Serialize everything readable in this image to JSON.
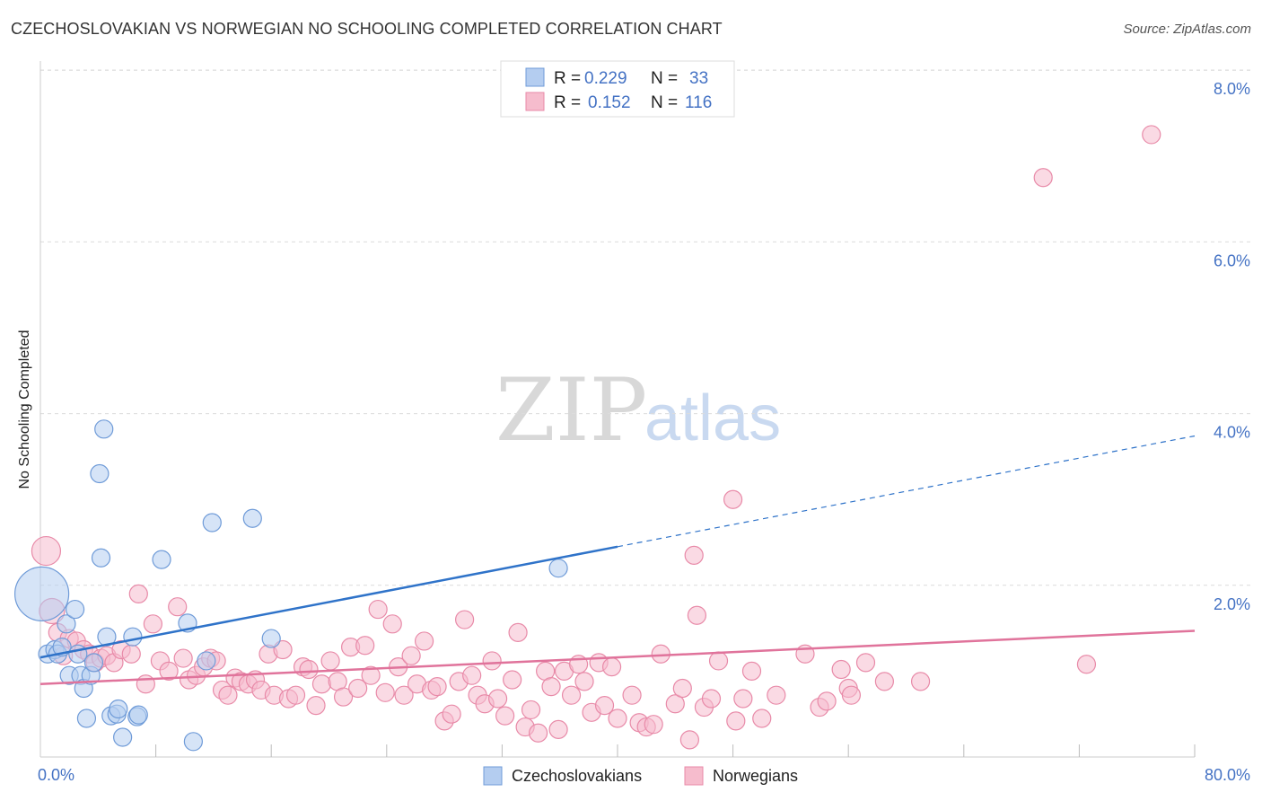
{
  "header": {
    "title": "CZECHOSLOVAKIAN VS NORWEGIAN NO SCHOOLING COMPLETED CORRELATION CHART",
    "source": "Source: ZipAtlas.com"
  },
  "colors": {
    "blue_fill": "#b4cdf0",
    "blue_stroke": "#6f9bd8",
    "blue_line": "#2f73c9",
    "pink_fill": "#f6bccd",
    "pink_stroke": "#e88aa8",
    "pink_line": "#e0739b",
    "tick_blue": "#4472c4",
    "grid": "#dcdcdc"
  },
  "legend": {
    "rows": [
      {
        "r_label": "R =",
        "r_value": "0.229",
        "n_label": "N =",
        "n_value": "33"
      },
      {
        "r_label": "R =",
        "r_value": "0.152",
        "n_label": "N =",
        "n_value": "116"
      }
    ]
  },
  "watermark": {
    "zip": "ZIP",
    "atlas": "atlas"
  },
  "chart_data": {
    "type": "scatter",
    "title": "CZECHOSLOVAKIAN VS NORWEGIAN NO SCHOOLING COMPLETED CORRELATION CHART",
    "xlabel": "",
    "ylabel": "No Schooling Completed",
    "xlim": [
      0,
      80
    ],
    "ylim": [
      0,
      8.4
    ],
    "x_tick_labels": [
      "0.0%",
      "80.0%"
    ],
    "y_ticks": [
      2,
      4,
      6,
      8
    ],
    "y_tick_labels": [
      "2.0%",
      "4.0%",
      "6.0%",
      "8.0%"
    ],
    "grid": true,
    "legend_position": "top-center",
    "series": [
      {
        "name": "Czechoslovakians",
        "r": 0.229,
        "n": 33,
        "trend": {
          "x0": 0,
          "y0": 1.16,
          "x1": 40,
          "y1": 2.45,
          "dash_to_x": 80,
          "dash_to_y": 3.74
        },
        "points": [
          [
            0.1,
            1.9,
            30
          ],
          [
            0.5,
            1.2,
            10
          ],
          [
            1.0,
            1.25,
            10
          ],
          [
            1.2,
            1.2,
            10
          ],
          [
            1.5,
            1.28,
            10
          ],
          [
            1.8,
            1.55,
            10
          ],
          [
            2.0,
            0.95,
            10
          ],
          [
            2.4,
            1.72,
            10
          ],
          [
            2.6,
            1.2,
            10
          ],
          [
            2.8,
            0.95,
            10
          ],
          [
            3.0,
            0.8,
            10
          ],
          [
            3.2,
            0.45,
            10
          ],
          [
            3.5,
            0.95,
            10
          ],
          [
            3.7,
            1.1,
            10
          ],
          [
            4.1,
            3.3,
            10
          ],
          [
            4.2,
            2.32,
            10
          ],
          [
            4.4,
            3.82,
            10
          ],
          [
            4.6,
            1.4,
            10
          ],
          [
            4.9,
            0.48,
            10
          ],
          [
            5.3,
            0.5,
            10
          ],
          [
            5.4,
            0.56,
            10
          ],
          [
            5.7,
            0.23,
            10
          ],
          [
            6.4,
            1.4,
            10
          ],
          [
            6.7,
            0.47,
            10
          ],
          [
            6.8,
            0.49,
            10
          ],
          [
            8.4,
            2.3,
            10
          ],
          [
            10.2,
            1.56,
            10
          ],
          [
            10.6,
            0.18,
            10
          ],
          [
            11.5,
            1.12,
            10
          ],
          [
            11.9,
            2.73,
            10
          ],
          [
            14.7,
            2.78,
            10
          ],
          [
            16.0,
            1.38,
            10
          ],
          [
            35.9,
            2.2,
            10
          ]
        ]
      },
      {
        "name": "Norwegians",
        "r": 0.152,
        "n": 116,
        "trend": {
          "x0": 0,
          "y0": 0.85,
          "x1": 80,
          "y1": 1.47
        },
        "points": [
          [
            0.4,
            2.4,
            16
          ],
          [
            0.8,
            1.7,
            14
          ],
          [
            1.2,
            1.45,
            10
          ],
          [
            1.6,
            1.18,
            10
          ],
          [
            2.0,
            1.38,
            10
          ],
          [
            2.5,
            1.35,
            10
          ],
          [
            3.0,
            1.25,
            10
          ],
          [
            3.4,
            1.2,
            10
          ],
          [
            3.8,
            1.1,
            10
          ],
          [
            4.2,
            1.15,
            10
          ],
          [
            4.6,
            1.18,
            10
          ],
          [
            5.1,
            1.1,
            10
          ],
          [
            5.6,
            1.25,
            10
          ],
          [
            6.3,
            1.2,
            10
          ],
          [
            6.8,
            1.9,
            10
          ],
          [
            7.3,
            0.85,
            10
          ],
          [
            7.8,
            1.55,
            10
          ],
          [
            8.3,
            1.12,
            10
          ],
          [
            8.9,
            1.0,
            10
          ],
          [
            9.5,
            1.75,
            10
          ],
          [
            9.9,
            1.15,
            10
          ],
          [
            10.3,
            0.9,
            10
          ],
          [
            10.8,
            0.95,
            10
          ],
          [
            11.3,
            1.05,
            10
          ],
          [
            11.8,
            1.15,
            10
          ],
          [
            12.2,
            1.12,
            10
          ],
          [
            12.6,
            0.78,
            10
          ],
          [
            13.0,
            0.72,
            10
          ],
          [
            13.5,
            0.92,
            10
          ],
          [
            13.9,
            0.88,
            10
          ],
          [
            14.4,
            0.85,
            10
          ],
          [
            14.9,
            0.9,
            10
          ],
          [
            15.3,
            0.78,
            10
          ],
          [
            15.8,
            1.2,
            10
          ],
          [
            16.2,
            0.72,
            10
          ],
          [
            16.8,
            1.25,
            10
          ],
          [
            17.2,
            0.68,
            10
          ],
          [
            17.7,
            0.72,
            10
          ],
          [
            18.2,
            1.05,
            10
          ],
          [
            18.6,
            1.02,
            10
          ],
          [
            19.1,
            0.6,
            10
          ],
          [
            19.5,
            0.85,
            10
          ],
          [
            20.1,
            1.12,
            10
          ],
          [
            20.6,
            0.88,
            10
          ],
          [
            21.0,
            0.7,
            10
          ],
          [
            21.5,
            1.28,
            10
          ],
          [
            22.0,
            0.8,
            10
          ],
          [
            22.5,
            1.3,
            10
          ],
          [
            22.9,
            0.95,
            10
          ],
          [
            23.4,
            1.72,
            10
          ],
          [
            23.9,
            0.75,
            10
          ],
          [
            24.4,
            1.55,
            10
          ],
          [
            24.8,
            1.05,
            10
          ],
          [
            25.2,
            0.72,
            10
          ],
          [
            25.7,
            1.18,
            10
          ],
          [
            26.1,
            0.85,
            10
          ],
          [
            26.6,
            1.35,
            10
          ],
          [
            27.1,
            0.78,
            10
          ],
          [
            27.5,
            0.82,
            10
          ],
          [
            28.0,
            0.42,
            10
          ],
          [
            28.5,
            0.5,
            10
          ],
          [
            29.0,
            0.88,
            10
          ],
          [
            29.4,
            1.6,
            10
          ],
          [
            29.9,
            0.95,
            10
          ],
          [
            30.3,
            0.72,
            10
          ],
          [
            30.8,
            0.62,
            10
          ],
          [
            31.3,
            1.12,
            10
          ],
          [
            31.7,
            0.68,
            10
          ],
          [
            32.2,
            0.48,
            10
          ],
          [
            32.7,
            0.9,
            10
          ],
          [
            33.1,
            1.45,
            10
          ],
          [
            33.6,
            0.35,
            10
          ],
          [
            34.0,
            0.55,
            10
          ],
          [
            34.5,
            0.28,
            10
          ],
          [
            35.0,
            1.0,
            10
          ],
          [
            35.4,
            0.82,
            10
          ],
          [
            35.9,
            0.32,
            10
          ],
          [
            36.3,
            1.0,
            10
          ],
          [
            36.8,
            0.72,
            10
          ],
          [
            37.3,
            1.08,
            10
          ],
          [
            37.7,
            0.88,
            10
          ],
          [
            38.2,
            0.52,
            10
          ],
          [
            38.7,
            1.1,
            10
          ],
          [
            39.1,
            0.6,
            10
          ],
          [
            39.6,
            1.05,
            10
          ],
          [
            40.0,
            0.45,
            10
          ],
          [
            41.0,
            0.72,
            10
          ],
          [
            41.5,
            0.4,
            10
          ],
          [
            42.0,
            0.35,
            10
          ],
          [
            42.5,
            0.38,
            10
          ],
          [
            43.0,
            1.2,
            10
          ],
          [
            44.0,
            0.62,
            10
          ],
          [
            44.5,
            0.8,
            10
          ],
          [
            45.0,
            0.2,
            10
          ],
          [
            45.3,
            2.35,
            10
          ],
          [
            45.5,
            1.65,
            10
          ],
          [
            46.0,
            0.58,
            10
          ],
          [
            46.5,
            0.68,
            10
          ],
          [
            47.0,
            1.12,
            10
          ],
          [
            48.0,
            3.0,
            10
          ],
          [
            48.2,
            0.42,
            10
          ],
          [
            48.7,
            0.68,
            10
          ],
          [
            49.3,
            1.0,
            10
          ],
          [
            50.0,
            0.45,
            10
          ],
          [
            51.0,
            0.72,
            10
          ],
          [
            53.0,
            1.2,
            10
          ],
          [
            54.0,
            0.58,
            10
          ],
          [
            54.5,
            0.65,
            10
          ],
          [
            55.5,
            1.02,
            10
          ],
          [
            56.0,
            0.8,
            10
          ],
          [
            56.2,
            0.72,
            10
          ],
          [
            57.2,
            1.1,
            10
          ],
          [
            58.5,
            0.88,
            10
          ],
          [
            61.0,
            0.88,
            10
          ],
          [
            69.5,
            6.75,
            10
          ],
          [
            72.5,
            1.08,
            10
          ],
          [
            77.0,
            7.25,
            10
          ]
        ]
      }
    ]
  }
}
